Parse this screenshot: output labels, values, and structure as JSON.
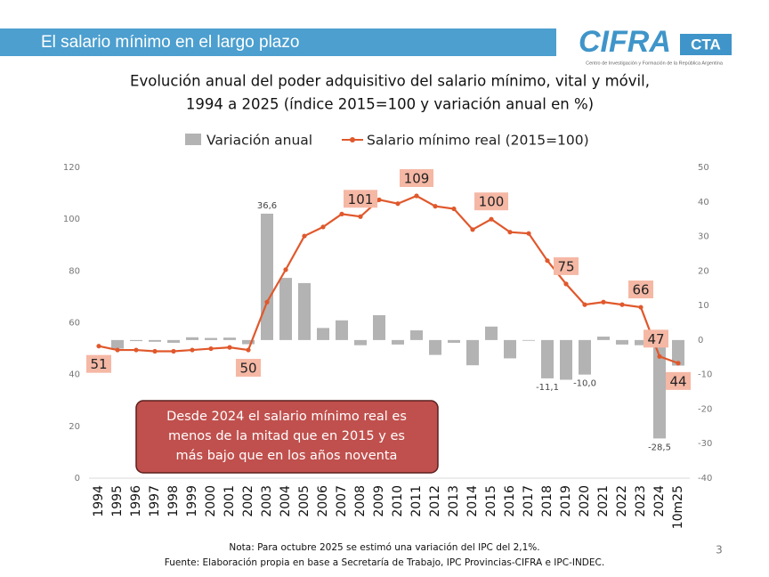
{
  "header": {
    "title": "El salario mínimo en el largo plazo",
    "logo": "CIFRA",
    "logo_suffix": "CTA",
    "logo_caption": "Centro de Investigación y Formación de la República Argentina"
  },
  "chart_data": {
    "type": "combo",
    "title_lines": [
      "Evolución anual del poder adquisitivo del salario mínimo, vital y móvil,",
      "1994 a 2025 (índice 2015=100 y variación anual en %)"
    ],
    "categories": [
      "1994",
      "1995",
      "1996",
      "1997",
      "1998",
      "1999",
      "2000",
      "2001",
      "2002",
      "2003",
      "2004",
      "2005",
      "2006",
      "2007",
      "2008",
      "2009",
      "2010",
      "2011",
      "2012",
      "2013",
      "2014",
      "2015",
      "2016",
      "2017",
      "2018",
      "2019",
      "2020",
      "2021",
      "2022",
      "2023",
      "2024",
      "10m25"
    ],
    "series": [
      {
        "name": "Variación anual",
        "type": "bar",
        "axis": "y2",
        "color": "#b3b3b3",
        "values": [
          0,
          -2.5,
          -0.3,
          -0.5,
          -0.8,
          0.8,
          0.6,
          0.7,
          -1.2,
          36.6,
          18,
          16.5,
          3.5,
          5.7,
          -1.5,
          7.2,
          -1.3,
          2.8,
          -4.3,
          -0.8,
          -7.3,
          3.9,
          -5.3,
          -0.2,
          -11.1,
          -11.5,
          -10.0,
          1.0,
          -1.3,
          -1.5,
          -28.5,
          -7.4
        ],
        "value_labels": [
          null,
          null,
          null,
          null,
          null,
          null,
          null,
          null,
          null,
          "36,6",
          null,
          null,
          null,
          null,
          null,
          null,
          null,
          null,
          null,
          null,
          null,
          null,
          null,
          null,
          "-11,1",
          null,
          "-10,0",
          null,
          null,
          null,
          "-28,5",
          null
        ]
      },
      {
        "name": "Salario mínimo real (2015=100)",
        "type": "line",
        "axis": "y",
        "color": "#e0582c",
        "values": [
          51,
          49.5,
          49.5,
          49,
          49,
          49.5,
          50,
          50.5,
          49.5,
          68,
          80.5,
          93.5,
          97,
          102,
          101,
          107.5,
          106,
          109,
          105,
          104,
          96,
          100,
          95,
          94.5,
          84,
          75,
          67,
          68,
          67,
          66,
          47,
          44.4
        ],
        "value_labels": [
          "51",
          null,
          null,
          null,
          null,
          null,
          null,
          null,
          "50",
          null,
          null,
          null,
          null,
          null,
          "101",
          null,
          null,
          "109",
          null,
          null,
          null,
          "100",
          null,
          null,
          null,
          "75",
          null,
          null,
          null,
          "66",
          "47",
          "44"
        ]
      }
    ],
    "ylim": [
      0,
      120
    ],
    "yticks": [
      0,
      20,
      40,
      60,
      80,
      100,
      120
    ],
    "y2lim": [
      -40,
      50
    ],
    "y2ticks": [
      -40,
      -30,
      -20,
      -10,
      0,
      10,
      20,
      30,
      40,
      50
    ],
    "grid": false,
    "legend": "top",
    "annotation_lines": [
      "Desde 2024 el salario mínimo real es",
      "menos de la mitad que en 2015 y es",
      "más bajo que en los años noventa"
    ]
  },
  "footer": {
    "note": "Nota: Para octubre 2025 se estimó una variación del IPC del 2,1%.",
    "source": "Fuente: Elaboración propia en base a Secretaría de Trabajo, IPC Provincias-CIFRA e IPC-INDEC.",
    "page": "3"
  }
}
